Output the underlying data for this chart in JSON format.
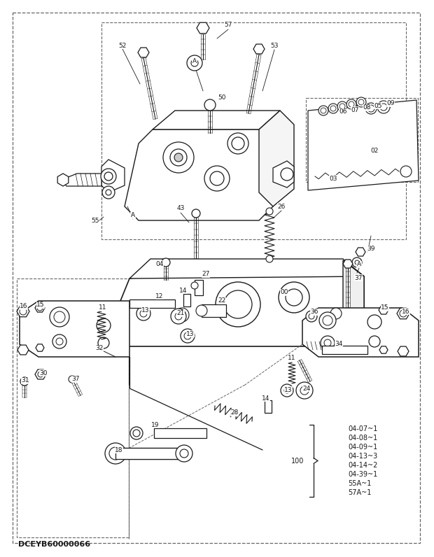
{
  "bg_color": "#ffffff",
  "lc": "#1a1a1a",
  "dc": "#666666",
  "figsize": [
    6.2,
    7.96
  ],
  "dpi": 100,
  "watermark": "DCEYB60000066",
  "brace_items": [
    "04-07~1",
    "04-08~1",
    "04-09~1",
    "04-13~3",
    "04-14~2",
    "04-39~1",
    "55A~1",
    "57A~1"
  ]
}
